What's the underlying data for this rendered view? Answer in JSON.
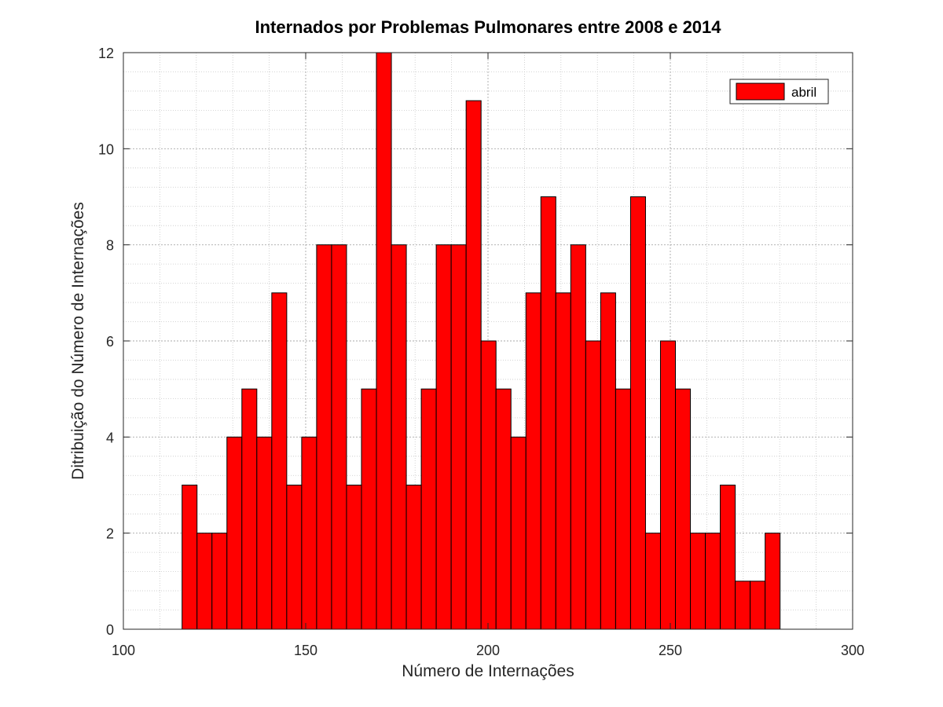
{
  "chart_data": {
    "type": "bar",
    "title": "Internados por Problemas Pulmonares entre 2008 e 2014",
    "xlabel": "Número de Internações",
    "ylabel": "Ditribuição do Número de Internações",
    "xlim": [
      100,
      300
    ],
    "ylim": [
      0,
      12
    ],
    "xticks": [
      100,
      150,
      200,
      250,
      300
    ],
    "yticks": [
      0,
      2,
      4,
      6,
      8,
      10,
      12
    ],
    "x_minor_step": 10,
    "y_minor_step": 0.4,
    "grid": true,
    "bin_width": 4.1,
    "bin_start": 116.1,
    "values": [
      3,
      2,
      2,
      4,
      5,
      4,
      7,
      3,
      4,
      8,
      8,
      3,
      5,
      12,
      8,
      3,
      5,
      8,
      8,
      11,
      6,
      5,
      4,
      7,
      9,
      7,
      8,
      6,
      7,
      5,
      9,
      2,
      6,
      5,
      2,
      2,
      3,
      1,
      1,
      2
    ],
    "bar_color": "#ff0000",
    "bar_edge_color": "#000000",
    "legend": {
      "position": "top-right",
      "entries": [
        {
          "label": "abril",
          "color": "#ff0000"
        }
      ]
    }
  }
}
